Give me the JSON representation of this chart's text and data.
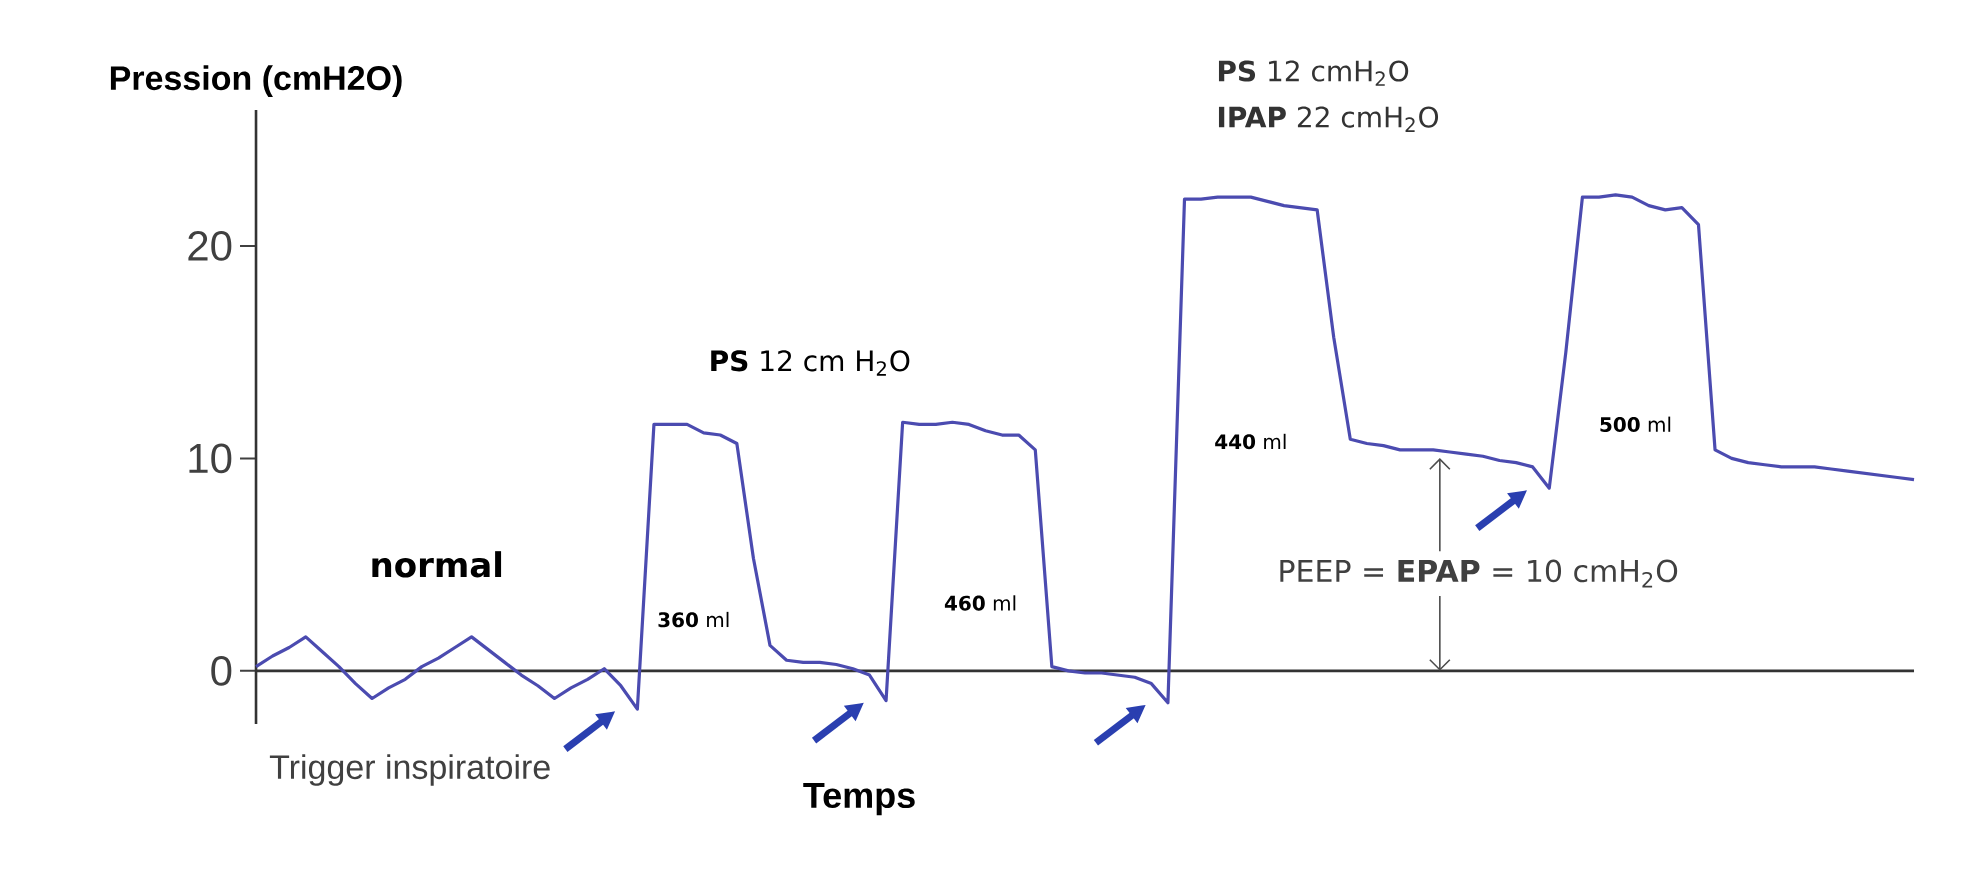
{
  "chart_data": {
    "type": "line",
    "xlabel": "Temps",
    "ylabel": "Pression (cmH2O)",
    "categories": [
      null,
      null,
      null,
      null,
      null,
      null,
      null,
      null,
      null,
      null,
      null,
      null,
      null,
      null,
      null,
      null,
      null,
      null,
      null,
      null,
      null,
      null,
      null,
      null,
      null,
      null,
      null,
      null,
      null,
      null,
      null,
      null,
      null,
      null,
      null,
      null,
      null,
      null,
      null,
      null,
      null,
      null,
      null,
      null,
      null,
      null,
      null,
      null,
      null,
      null,
      null,
      null,
      null,
      null,
      null,
      null,
      null,
      null,
      null,
      null,
      null,
      null,
      null,
      null,
      null,
      null,
      null,
      null,
      null,
      null,
      null,
      null,
      null,
      null,
      null,
      null,
      null,
      null,
      null,
      null,
      null,
      null,
      null,
      null,
      null,
      null,
      null,
      null,
      null,
      null,
      null,
      null,
      null,
      null,
      null,
      null,
      null,
      null,
      null,
      null,
      null
    ],
    "values": [
      0.2,
      0.7,
      1.1,
      1.6,
      0.9,
      0.2,
      -0.6,
      -1.3,
      -0.8,
      -0.4,
      0.2,
      0.6,
      1.1,
      1.6,
      1.0,
      0.4,
      -0.2,
      -0.7,
      -1.3,
      -0.8,
      -0.4,
      0.1,
      -0.7,
      -1.8,
      11.6,
      11.6,
      11.6,
      11.2,
      11.1,
      10.7,
      5.3,
      1.2,
      0.5,
      0.4,
      0.4,
      0.3,
      0.1,
      -0.2,
      -1.4,
      11.7,
      11.6,
      11.6,
      11.7,
      11.6,
      11.3,
      11.1,
      11.1,
      10.4,
      0.2,
      0,
      -0.1,
      -0.1,
      -0.2,
      -0.3,
      -0.6,
      -1.5,
      22.2,
      22.2,
      22.3,
      22.3,
      22.3,
      22.1,
      21.9,
      21.8,
      21.7,
      15.7,
      10.9,
      10.7,
      10.6,
      10.4,
      10.4,
      10.4,
      10.3,
      10.2,
      10.1,
      9.9,
      9.8,
      9.6,
      8.6,
      15.0,
      22.3,
      22.3,
      22.4,
      22.3,
      21.9,
      21.7,
      21.8,
      21.0,
      10.4,
      10.0,
      9.8,
      9.7,
      9.6,
      9.6,
      9.6,
      9.5,
      9.4,
      9.3,
      9.2,
      9.1,
      9.0
    ],
    "color": "#4b4bb0",
    "marker": "none",
    "ylim": [
      -2.5,
      26.4
    ],
    "yticks": [
      0,
      10,
      20
    ],
    "annotations": [
      "**normal**",
      "**PS**  12 cm H$_{2}$O",
      "Trigger inspiratoire",
      "**360** ml",
      "**460** ml",
      "**440** ml",
      "**500** ml",
      "**PS**          12 cmH$_{2}$O",
      "**IPAP**    22 cmH$_{2}$O",
      "PEEP = **EPAP** = 10 cmH$_{2}$O"
    ]
  }
}
